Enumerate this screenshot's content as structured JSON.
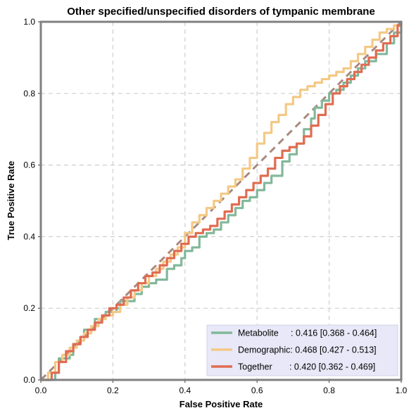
{
  "chart_data": {
    "type": "line",
    "title": "Other specified/unspecified disorders of tympanic membrane",
    "xlabel": "False Positive Rate",
    "ylabel": "True Positive Rate",
    "xlim": [
      0,
      1
    ],
    "ylim": [
      0,
      1
    ],
    "xticks": [
      "0.0",
      "0.2",
      "0.4",
      "0.6",
      "0.8",
      "1.0"
    ],
    "yticks": [
      "0.0",
      "0.2",
      "0.4",
      "0.6",
      "0.8",
      "1.0"
    ],
    "grid": true,
    "legend_position": "bottom-right",
    "diagonal_color": "#a88a80",
    "series": [
      {
        "name": "Metabolite",
        "legend_label": "Metabolite     : 0.416 [0.368 - 0.464]",
        "color": "#82b89b",
        "x": [
          0,
          0.04,
          0.05,
          0.08,
          0.09,
          0.11,
          0.12,
          0.14,
          0.15,
          0.17,
          0.18,
          0.21,
          0.22,
          0.26,
          0.28,
          0.3,
          0.32,
          0.35,
          0.37,
          0.39,
          0.4,
          0.42,
          0.44,
          0.46,
          0.48,
          0.5,
          0.52,
          0.54,
          0.56,
          0.58,
          0.6,
          0.62,
          0.64,
          0.67,
          0.69,
          0.71,
          0.73,
          0.75,
          0.76,
          0.78,
          0.8,
          0.82,
          0.84,
          0.86,
          0.88,
          0.9,
          0.93,
          0.96,
          0.98,
          1.0
        ],
        "y": [
          0,
          0.02,
          0.06,
          0.07,
          0.1,
          0.12,
          0.14,
          0.15,
          0.17,
          0.18,
          0.19,
          0.2,
          0.22,
          0.24,
          0.26,
          0.27,
          0.28,
          0.31,
          0.32,
          0.34,
          0.36,
          0.37,
          0.4,
          0.41,
          0.42,
          0.44,
          0.46,
          0.48,
          0.5,
          0.51,
          0.53,
          0.55,
          0.57,
          0.61,
          0.63,
          0.66,
          0.7,
          0.73,
          0.76,
          0.78,
          0.8,
          0.81,
          0.83,
          0.85,
          0.87,
          0.89,
          0.91,
          0.94,
          0.97,
          1.0
        ]
      },
      {
        "name": "Demographic",
        "legend_label": "Demographic: 0.468 [0.427 - 0.513]",
        "color": "#f3c985",
        "x": [
          0,
          0.02,
          0.04,
          0.06,
          0.08,
          0.1,
          0.12,
          0.14,
          0.16,
          0.18,
          0.2,
          0.22,
          0.24,
          0.26,
          0.28,
          0.3,
          0.32,
          0.34,
          0.36,
          0.38,
          0.4,
          0.42,
          0.44,
          0.46,
          0.48,
          0.5,
          0.52,
          0.54,
          0.56,
          0.58,
          0.6,
          0.62,
          0.64,
          0.66,
          0.68,
          0.7,
          0.72,
          0.74,
          0.76,
          0.78,
          0.8,
          0.82,
          0.84,
          0.86,
          0.88,
          0.9,
          0.92,
          0.94,
          0.96,
          0.98,
          1.0
        ],
        "y": [
          0,
          0.02,
          0.05,
          0.07,
          0.09,
          0.11,
          0.13,
          0.15,
          0.17,
          0.18,
          0.19,
          0.21,
          0.23,
          0.25,
          0.27,
          0.29,
          0.31,
          0.33,
          0.35,
          0.37,
          0.41,
          0.44,
          0.46,
          0.48,
          0.5,
          0.52,
          0.54,
          0.56,
          0.59,
          0.62,
          0.66,
          0.69,
          0.72,
          0.74,
          0.77,
          0.79,
          0.81,
          0.82,
          0.83,
          0.84,
          0.85,
          0.86,
          0.87,
          0.89,
          0.91,
          0.93,
          0.95,
          0.97,
          0.98,
          0.99,
          1.0
        ]
      },
      {
        "name": "Together",
        "legend_label": "Together       : 0.420 [0.362 - 0.469]",
        "color": "#e06c51",
        "x": [
          0,
          0.03,
          0.05,
          0.07,
          0.09,
          0.11,
          0.13,
          0.15,
          0.17,
          0.19,
          0.21,
          0.23,
          0.25,
          0.27,
          0.29,
          0.31,
          0.33,
          0.35,
          0.37,
          0.39,
          0.41,
          0.43,
          0.45,
          0.47,
          0.49,
          0.51,
          0.53,
          0.55,
          0.57,
          0.59,
          0.61,
          0.63,
          0.65,
          0.67,
          0.69,
          0.71,
          0.73,
          0.75,
          0.77,
          0.79,
          0.81,
          0.83,
          0.85,
          0.87,
          0.89,
          0.91,
          0.93,
          0.95,
          0.97,
          0.99,
          1.0
        ],
        "y": [
          0,
          0.02,
          0.05,
          0.08,
          0.1,
          0.12,
          0.14,
          0.16,
          0.18,
          0.2,
          0.21,
          0.23,
          0.25,
          0.27,
          0.29,
          0.3,
          0.32,
          0.34,
          0.36,
          0.38,
          0.4,
          0.41,
          0.42,
          0.43,
          0.45,
          0.47,
          0.49,
          0.51,
          0.53,
          0.55,
          0.57,
          0.59,
          0.62,
          0.64,
          0.65,
          0.66,
          0.68,
          0.71,
          0.74,
          0.77,
          0.8,
          0.82,
          0.84,
          0.86,
          0.88,
          0.9,
          0.92,
          0.94,
          0.96,
          0.99,
          1.0
        ]
      }
    ]
  }
}
